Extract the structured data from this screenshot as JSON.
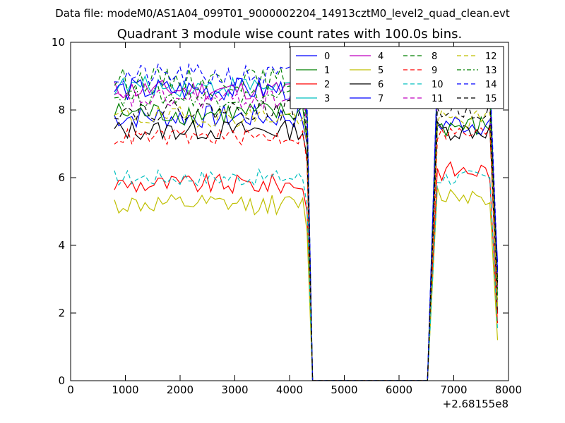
{
  "chart_data": {
    "type": "line",
    "suptitle": "Data file: modeM0/AS1A04_099T01_9000002204_14913cztM0_level2_quad_clean.evt",
    "title": "Quadrant 3 module wise count rates with 100.0s bins.",
    "xlabel": "",
    "ylabel": "",
    "xlim": [
      0,
      8000
    ],
    "ylim": [
      0,
      10
    ],
    "x_offset_label": "+2.68155e8",
    "xticks": [
      0,
      1000,
      2000,
      3000,
      4000,
      5000,
      6000,
      7000,
      8000
    ],
    "yticks": [
      0,
      2,
      4,
      6,
      8,
      10
    ],
    "legend_position": "top-right",
    "gaps": {
      "x_start": 4420,
      "x_end": 6520,
      "value": 0
    },
    "segments": {
      "first": {
        "x_start": 800,
        "x_end": 4320,
        "step": 80
      },
      "second": {
        "x_start": 6520,
        "x_end": 7800,
        "step": 80
      }
    },
    "series": [
      {
        "name": "0",
        "color": "#0000ff",
        "style": "solid",
        "level1": 7.8,
        "level2": 7.6,
        "end": 3.5,
        "amp": 0.35
      },
      {
        "name": "1",
        "color": "#008000",
        "style": "solid",
        "level1": 7.9,
        "level2": 7.5,
        "end": 3.0,
        "amp": 0.35
      },
      {
        "name": "2",
        "color": "#ff0000",
        "style": "solid",
        "level1": 5.8,
        "level2": 6.2,
        "end": 1.7,
        "amp": 0.3
      },
      {
        "name": "3",
        "color": "#00bfbf",
        "style": "solid",
        "level1": 8.7,
        "level2": 9.0,
        "end": 2.5,
        "amp": 0.3
      },
      {
        "name": "4",
        "color": "#bf00bf",
        "style": "solid",
        "level1": 8.6,
        "level2": 8.6,
        "end": 2.8,
        "amp": 0.3
      },
      {
        "name": "5",
        "color": "#bfbf00",
        "style": "solid",
        "level1": 5.2,
        "level2": 5.5,
        "end": 1.2,
        "amp": 0.3
      },
      {
        "name": "6",
        "color": "#000000",
        "style": "solid",
        "level1": 7.4,
        "level2": 7.4,
        "end": 2.0,
        "amp": 0.3
      },
      {
        "name": "7",
        "color": "#0000ff",
        "style": "solid",
        "level1": 8.6,
        "level2": 8.7,
        "end": 3.2,
        "amp": 0.35
      },
      {
        "name": "8",
        "color": "#008000",
        "style": "dashed",
        "level1": 8.9,
        "level2": 8.6,
        "end": 2.4,
        "amp": 0.35
      },
      {
        "name": "9",
        "color": "#ff0000",
        "style": "dashed",
        "level1": 7.2,
        "level2": 7.3,
        "end": 1.9,
        "amp": 0.25
      },
      {
        "name": "10",
        "color": "#00bfbf",
        "style": "dashed",
        "level1": 6.0,
        "level2": 6.0,
        "end": 1.5,
        "amp": 0.25
      },
      {
        "name": "11",
        "color": "#bf00bf",
        "style": "dashed",
        "level1": 8.3,
        "level2": 8.5,
        "end": 2.6,
        "amp": 0.3
      },
      {
        "name": "12",
        "color": "#bfbf00",
        "style": "dashed",
        "level1": 7.8,
        "level2": 7.7,
        "end": 2.2,
        "amp": 0.3
      },
      {
        "name": "13",
        "color": "#008000",
        "style": "dashdot",
        "level1": 8.4,
        "level2": 8.6,
        "end": 2.7,
        "amp": 0.3
      },
      {
        "name": "14",
        "color": "#0000ff",
        "style": "dashed",
        "level1": 9.0,
        "level2": 9.2,
        "end": 3.3,
        "amp": 0.35
      },
      {
        "name": "15",
        "color": "#000000",
        "style": "dashed",
        "level1": 8.0,
        "level2": 8.0,
        "end": 2.9,
        "amp": 0.3
      }
    ]
  }
}
